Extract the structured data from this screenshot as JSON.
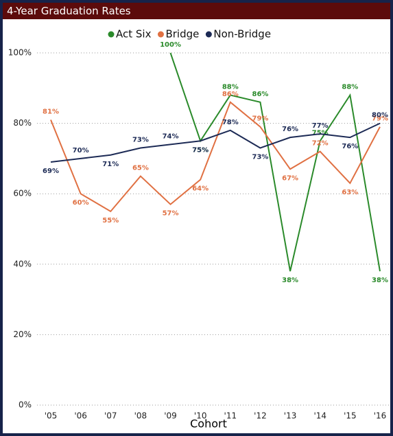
{
  "chart_data": {
    "type": "line",
    "title": "4-Year Graduation Rates",
    "x_label": "Cohort",
    "categories": [
      "'05",
      "'06",
      "'07",
      "'08",
      "'09",
      "'10",
      "'11",
      "'12",
      "'13",
      "'14",
      "'15",
      "'16"
    ],
    "series": [
      {
        "name": "Act Six",
        "color": "#2a8a2a",
        "values": [
          null,
          null,
          null,
          null,
          100,
          75,
          88,
          86,
          38,
          75,
          88,
          38
        ],
        "value_labels": [
          null,
          null,
          null,
          null,
          "100%",
          "75%",
          "88%",
          "86%",
          "38%",
          "75%",
          "88%",
          "38%"
        ]
      },
      {
        "name": "Bridge",
        "color": "#e07042",
        "values": [
          81,
          60,
          55,
          65,
          57,
          64,
          86,
          79,
          67,
          72,
          63,
          79
        ],
        "value_labels": [
          "81%",
          "60%",
          "55%",
          "65%",
          "57%",
          "64%",
          "86%",
          "79%",
          "67%",
          "72%",
          "63%",
          "79%"
        ]
      },
      {
        "name": "Non-Bridge",
        "color": "#1c2a55",
        "values": [
          69,
          70,
          71,
          73,
          74,
          75,
          78,
          73,
          76,
          77,
          76,
          80
        ],
        "value_labels": [
          "69%",
          "70%",
          "71%",
          "73%",
          "74%",
          "75%",
          "78%",
          "73%",
          "76%",
          "77%",
          "76%",
          "80%"
        ]
      }
    ],
    "ylim": [
      0,
      100
    ],
    "yticks": [
      {
        "value": 0,
        "label": "0%"
      },
      {
        "value": 20,
        "label": "20%"
      },
      {
        "value": 40,
        "label": "40%"
      },
      {
        "value": 60,
        "label": "60%"
      },
      {
        "value": 80,
        "label": "80%"
      },
      {
        "value": 100,
        "label": "100%"
      }
    ],
    "grid": true,
    "legend": "top"
  }
}
